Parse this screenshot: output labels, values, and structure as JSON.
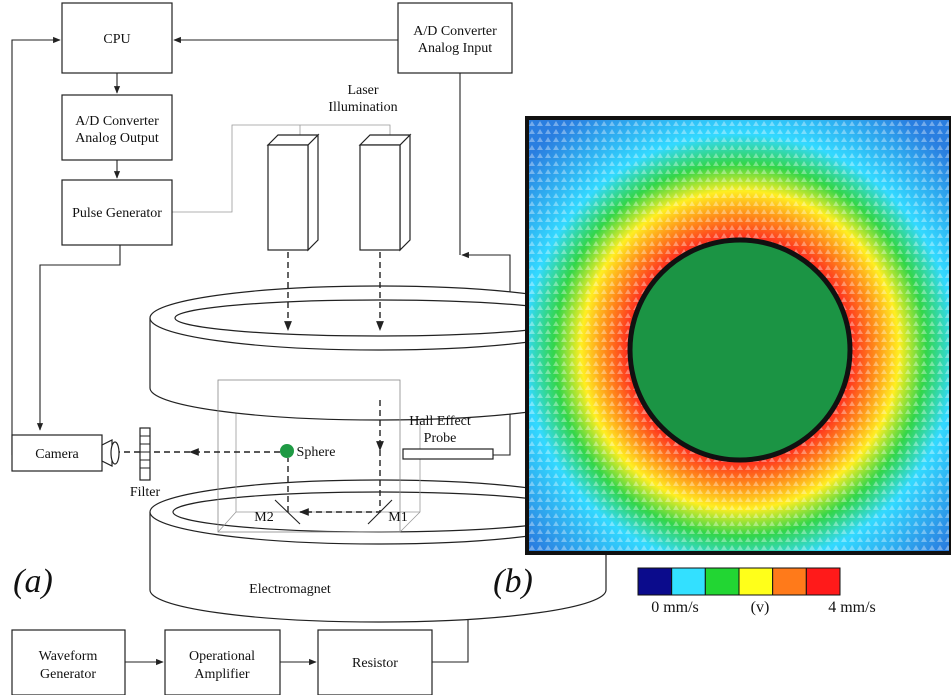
{
  "panel_a": {
    "label": "(a)",
    "nodes": [
      {
        "lines": [
          "CPU"
        ]
      },
      {
        "lines": [
          "A/D Converter",
          "Analog Input"
        ]
      },
      {
        "lines": [
          "A/D Converter",
          "Analog Output"
        ]
      },
      {
        "lines": [
          "Pulse Generator"
        ]
      },
      {
        "lines": [
          "Waveform",
          "Generator"
        ]
      },
      {
        "lines": [
          "Operational",
          "Amplifier"
        ]
      },
      {
        "lines": [
          "Resistor"
        ]
      },
      {
        "lines": [
          "Camera"
        ]
      }
    ],
    "labels": {
      "laser": [
        "Laser",
        "Illumination"
      ],
      "sphere": "Sphere",
      "filter": "Filter",
      "probe": [
        "Hall Effect",
        "Probe"
      ],
      "m1": "M1",
      "m2": "M2",
      "electromagnet": "Electromagnet"
    }
  },
  "panel_b": {
    "label": "(b)",
    "colorbar": {
      "colors": [
        "#0b0b8c",
        "#33e0ff",
        "#22d633",
        "#ffff1a",
        "#ff7a1a",
        "#ff1a1a"
      ],
      "min_label": "0 mm/s",
      "mid_label": "(v)",
      "max_label": "4 mm/s"
    }
  }
}
